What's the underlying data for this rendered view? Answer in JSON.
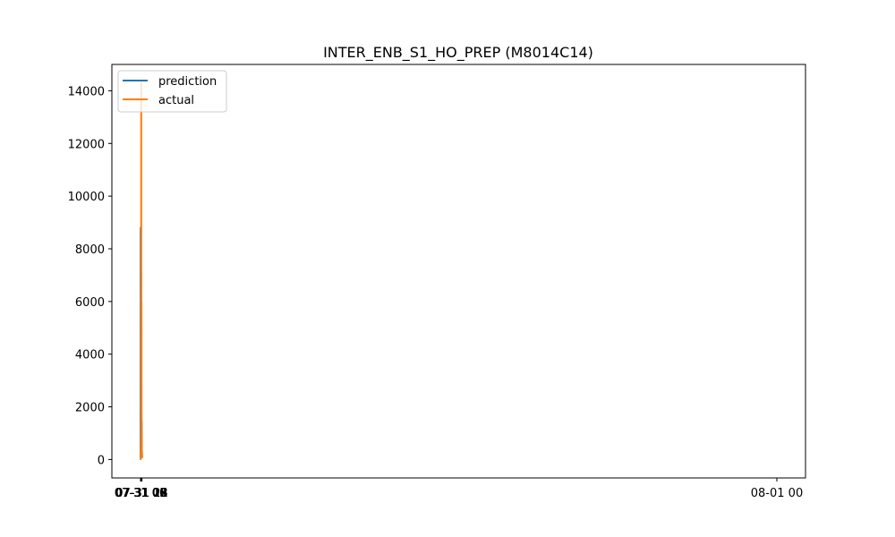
{
  "chart_data": {
    "type": "line",
    "title": "INTER_ENB_S1_HO_PREP (M8014C14)",
    "xlabel": "",
    "ylabel": "",
    "x": [
      "07-31 00:00",
      "07-31 01:00",
      "07-31 02:00",
      "07-31 03:00",
      "07-31 04:00",
      "07-31 05:00",
      "07-31 06:00",
      "07-31 07:00",
      "07-31 08:00",
      "07-31 09:00",
      "07-31 10:00",
      "07-31 11:00",
      "07-31 12:00",
      "07-31 13:00",
      "07-31 14:00",
      "07-31 15:00",
      "07-31 16:00",
      "07-31 17:00",
      "07-31 18:00",
      "07-31 19:00",
      "07-31 20:00",
      "07-31 21:00",
      "07-31 22:00",
      "07-31 23:00"
    ],
    "x_ticks": [
      "07-31 00",
      "07-31 03",
      "07-31 06",
      "07-31 09",
      "07-31 12",
      "07-31 15",
      "07-31 18",
      "07-31 21",
      "08-01 00"
    ],
    "x_range": [
      "07-31 00:00",
      "08-01 00:00"
    ],
    "y_ticks": [
      0,
      2000,
      4000,
      6000,
      8000,
      10000,
      12000,
      14000
    ],
    "ylim": [
      -700,
      15000
    ],
    "grid": false,
    "legend_position": "top-left",
    "series": [
      {
        "name": "prediction",
        "color": "#1f77b4",
        "values": [
          60,
          30,
          8800,
          60,
          80,
          170,
          1200,
          5520,
          1520,
          1450,
          7150,
          2130,
          2080,
          1850,
          1620,
          1240,
          1310,
          1460,
          660,
          530,
          320,
          230,
          110,
          60
        ]
      },
      {
        "name": "actual",
        "color": "#ff7f0e",
        "values": [
          80,
          20,
          20,
          10,
          30,
          60,
          340,
          420,
          760,
          1000,
          13230,
          14340,
          1790,
          2050,
          1700,
          5980,
          970,
          1060,
          1220,
          350,
          350,
          370,
          190,
          80
        ]
      }
    ]
  }
}
